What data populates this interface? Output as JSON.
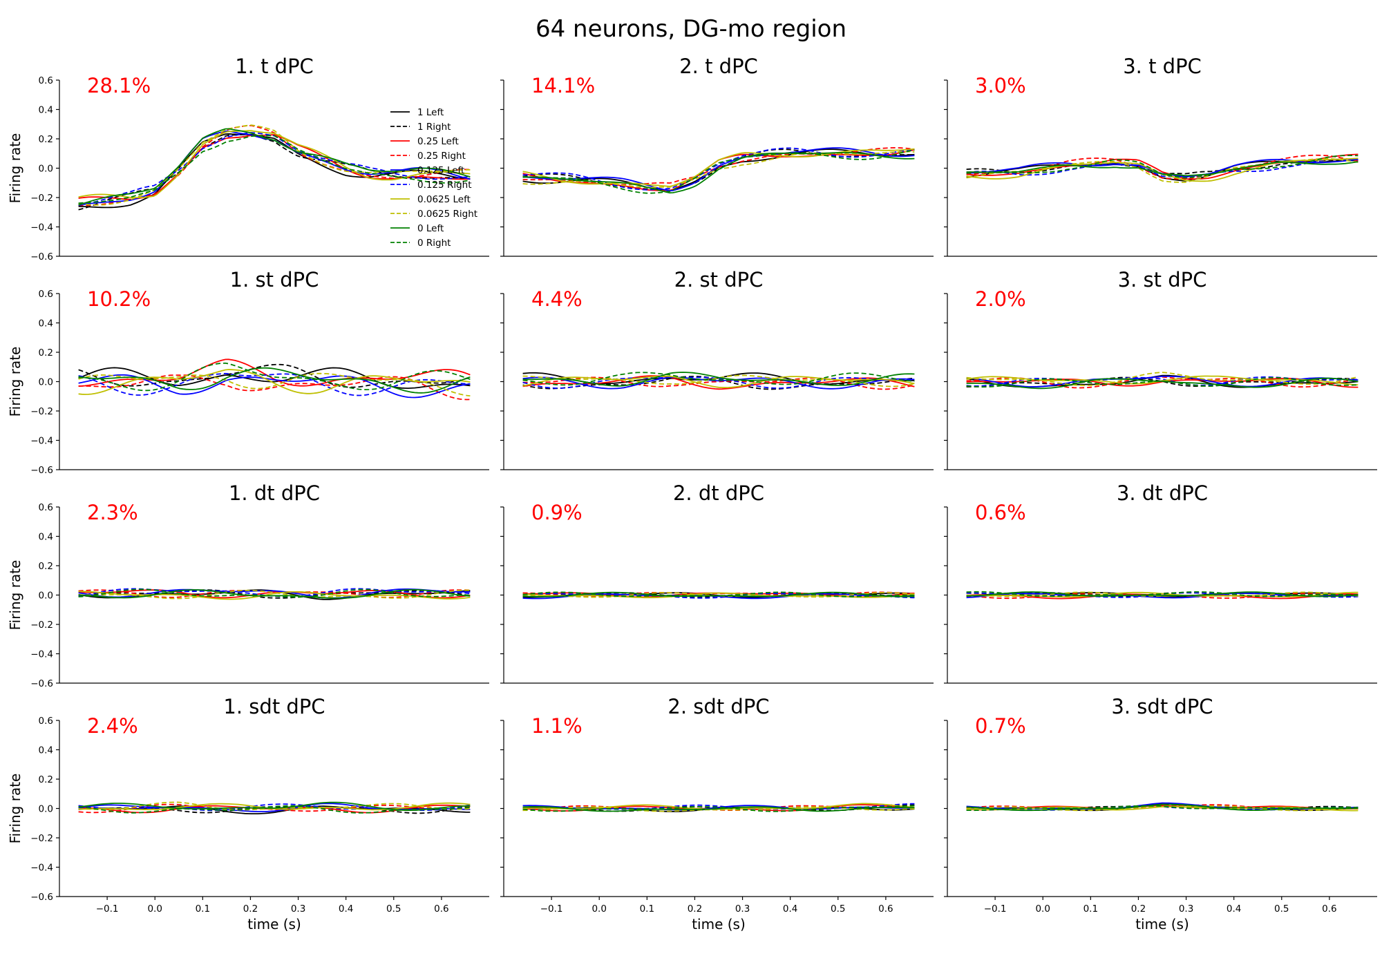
{
  "suptitle": "64 neurons, DG-mo region",
  "chart_data": {
    "type": "line",
    "xlabel": "time (s)",
    "ylabel": "Firing rate",
    "xlim": [
      -0.2,
      0.7
    ],
    "ylim": [
      -0.6,
      0.6
    ],
    "xticks": [
      -0.1,
      0.0,
      0.1,
      0.2,
      0.3,
      0.4,
      0.5,
      0.6
    ],
    "yticks": [
      -0.6,
      -0.4,
      -0.2,
      0.0,
      0.2,
      0.4,
      0.6
    ],
    "x_range": [
      -0.16,
      0.66
    ],
    "grid": false,
    "legend_placement": "top-right of first panel",
    "series_styles": [
      {
        "name": "1 Left",
        "color": "#000000",
        "dash": false
      },
      {
        "name": "1 Right",
        "color": "#000000",
        "dash": true
      },
      {
        "name": "0.25 Left",
        "color": "#ff0000",
        "dash": false
      },
      {
        "name": "0.25 Right",
        "color": "#ff0000",
        "dash": true
      },
      {
        "name": "0.125 Left",
        "color": "#0000ff",
        "dash": false
      },
      {
        "name": "0.125 Right",
        "color": "#0000ff",
        "dash": true
      },
      {
        "name": "0.0625 Left",
        "color": "#bfbf00",
        "dash": false
      },
      {
        "name": "0.0625 Right",
        "color": "#bfbf00",
        "dash": true
      },
      {
        "name": "0 Left",
        "color": "#008000",
        "dash": false
      },
      {
        "name": "0 Right",
        "color": "#008000",
        "dash": true
      }
    ],
    "panels": [
      {
        "title": "1. t dPC",
        "variance": "28.1%",
        "amp": 0.05,
        "base": [
          [
            -0.16,
            -0.24
          ],
          [
            -0.05,
            -0.2
          ],
          [
            0.0,
            -0.16
          ],
          [
            0.05,
            -0.02
          ],
          [
            0.1,
            0.16
          ],
          [
            0.15,
            0.24
          ],
          [
            0.2,
            0.25
          ],
          [
            0.25,
            0.22
          ],
          [
            0.3,
            0.12
          ],
          [
            0.35,
            0.06
          ],
          [
            0.4,
            0.0
          ],
          [
            0.45,
            -0.04
          ],
          [
            0.5,
            -0.05
          ],
          [
            0.55,
            -0.04
          ],
          [
            0.6,
            -0.04
          ],
          [
            0.66,
            -0.05
          ]
        ]
      },
      {
        "title": "2. t dPC",
        "variance": "14.1%",
        "amp": 0.04,
        "base": [
          [
            -0.16,
            -0.06
          ],
          [
            -0.05,
            -0.08
          ],
          [
            0.05,
            -0.11
          ],
          [
            0.1,
            -0.13
          ],
          [
            0.15,
            -0.14
          ],
          [
            0.2,
            -0.08
          ],
          [
            0.25,
            0.02
          ],
          [
            0.3,
            0.07
          ],
          [
            0.35,
            0.09
          ],
          [
            0.4,
            0.1
          ],
          [
            0.5,
            0.1
          ],
          [
            0.6,
            0.1
          ],
          [
            0.66,
            0.11
          ]
        ]
      },
      {
        "title": "3. t dPC",
        "variance": "3.0%",
        "amp": 0.035,
        "base": [
          [
            -0.16,
            -0.04
          ],
          [
            -0.05,
            -0.03
          ],
          [
            0.05,
            0.02
          ],
          [
            0.1,
            0.03
          ],
          [
            0.15,
            0.04
          ],
          [
            0.2,
            0.02
          ],
          [
            0.25,
            -0.05
          ],
          [
            0.3,
            -0.07
          ],
          [
            0.35,
            -0.05
          ],
          [
            0.4,
            -0.01
          ],
          [
            0.5,
            0.04
          ],
          [
            0.6,
            0.06
          ],
          [
            0.66,
            0.06
          ]
        ]
      },
      {
        "title": "1. st dPC",
        "variance": "10.2%",
        "amp": 0.09,
        "base": [
          [
            -0.16,
            0.0
          ],
          [
            -0.05,
            0.0
          ],
          [
            0.05,
            0.0
          ],
          [
            0.15,
            0.05
          ],
          [
            0.25,
            0.02
          ],
          [
            0.35,
            0.0
          ],
          [
            0.45,
            0.0
          ],
          [
            0.55,
            -0.01
          ],
          [
            0.66,
            -0.02
          ]
        ]
      },
      {
        "title": "2. st dPC",
        "variance": "4.4%",
        "amp": 0.05,
        "base": [
          [
            -0.16,
            0.0
          ],
          [
            -0.05,
            0.0
          ],
          [
            0.05,
            0.0
          ],
          [
            0.15,
            0.02
          ],
          [
            0.25,
            0.0
          ],
          [
            0.35,
            0.0
          ],
          [
            0.45,
            0.0
          ],
          [
            0.55,
            0.0
          ],
          [
            0.66,
            0.0
          ]
        ]
      },
      {
        "title": "3. st dPC",
        "variance": "2.0%",
        "amp": 0.04,
        "base": [
          [
            -0.16,
            0.0
          ],
          [
            -0.05,
            0.0
          ],
          [
            0.05,
            -0.01
          ],
          [
            0.15,
            0.0
          ],
          [
            0.25,
            0.02
          ],
          [
            0.35,
            0.0
          ],
          [
            0.45,
            0.0
          ],
          [
            0.55,
            0.0
          ],
          [
            0.66,
            0.0
          ]
        ]
      },
      {
        "title": "1. dt dPC",
        "variance": "2.3%",
        "amp": 0.035,
        "base": [
          [
            -0.16,
            0.01
          ],
          [
            -0.05,
            0.01
          ],
          [
            0.05,
            0.01
          ],
          [
            0.15,
            0.01
          ],
          [
            0.25,
            0.01
          ],
          [
            0.35,
            0.0
          ],
          [
            0.45,
            0.01
          ],
          [
            0.55,
            0.01
          ],
          [
            0.66,
            0.01
          ]
        ]
      },
      {
        "title": "2. dt dPC",
        "variance": "0.9%",
        "amp": 0.02,
        "base": [
          [
            -0.16,
            0.0
          ],
          [
            -0.05,
            0.0
          ],
          [
            0.05,
            0.0
          ],
          [
            0.15,
            0.0
          ],
          [
            0.25,
            0.0
          ],
          [
            0.35,
            0.0
          ],
          [
            0.45,
            0.0
          ],
          [
            0.55,
            0.0
          ],
          [
            0.66,
            0.0
          ]
        ]
      },
      {
        "title": "3. dt dPC",
        "variance": "0.6%",
        "amp": 0.02,
        "base": [
          [
            -0.16,
            0.0
          ],
          [
            -0.05,
            0.0
          ],
          [
            0.05,
            0.0
          ],
          [
            0.15,
            0.0
          ],
          [
            0.25,
            0.0
          ],
          [
            0.35,
            0.0
          ],
          [
            0.45,
            0.0
          ],
          [
            0.55,
            0.0
          ],
          [
            0.66,
            0.0
          ]
        ]
      },
      {
        "title": "1. sdt dPC",
        "variance": "2.4%",
        "amp": 0.03,
        "base": [
          [
            -0.16,
            0.0
          ],
          [
            -0.05,
            0.0
          ],
          [
            0.05,
            0.01
          ],
          [
            0.15,
            0.0
          ],
          [
            0.25,
            0.0
          ],
          [
            0.35,
            0.01
          ],
          [
            0.45,
            0.0
          ],
          [
            0.55,
            0.0
          ],
          [
            0.66,
            0.01
          ]
        ]
      },
      {
        "title": "2. sdt dPC",
        "variance": "1.1%",
        "amp": 0.02,
        "base": [
          [
            -0.16,
            0.0
          ],
          [
            -0.05,
            0.0
          ],
          [
            0.05,
            0.0
          ],
          [
            0.15,
            0.0
          ],
          [
            0.25,
            0.0
          ],
          [
            0.35,
            0.0
          ],
          [
            0.45,
            0.0
          ],
          [
            0.55,
            0.01
          ],
          [
            0.66,
            0.01
          ]
        ]
      },
      {
        "title": "3. sdt dPC",
        "variance": "0.7%",
        "amp": 0.015,
        "base": [
          [
            -0.16,
            0.0
          ],
          [
            -0.05,
            0.0
          ],
          [
            0.05,
            0.0
          ],
          [
            0.15,
            0.0
          ],
          [
            0.25,
            0.02
          ],
          [
            0.35,
            0.01
          ],
          [
            0.45,
            0.0
          ],
          [
            0.55,
            0.0
          ],
          [
            0.66,
            0.0
          ]
        ]
      }
    ]
  }
}
